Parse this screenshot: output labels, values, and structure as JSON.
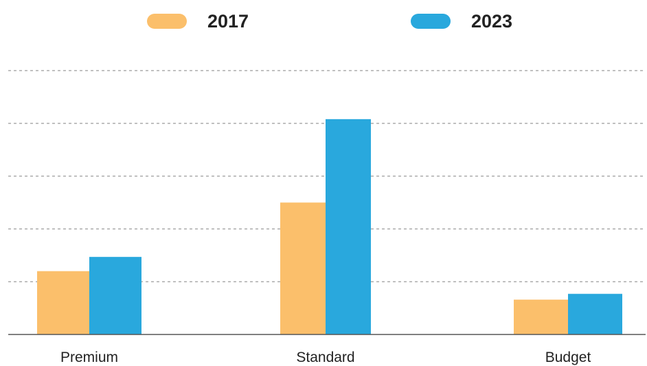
{
  "chart_data": {
    "type": "bar",
    "title": "",
    "xlabel": "",
    "ylabel": "",
    "categories": [
      "Premium",
      "Standard",
      "Budget"
    ],
    "series": [
      {
        "name": "2017",
        "color": "#fbbf6b",
        "values": [
          12,
          25,
          6.6
        ]
      },
      {
        "name": "2023",
        "color": "#29a8dd",
        "values": [
          14.7,
          40.8,
          7.7
        ]
      }
    ],
    "ylim": [
      0,
      50
    ],
    "gridline_values": [
      10,
      20,
      30,
      40,
      50
    ],
    "y_tick_labels_shown": false,
    "grid": true,
    "grid_style": "dashed",
    "legend_position": "top-center"
  }
}
